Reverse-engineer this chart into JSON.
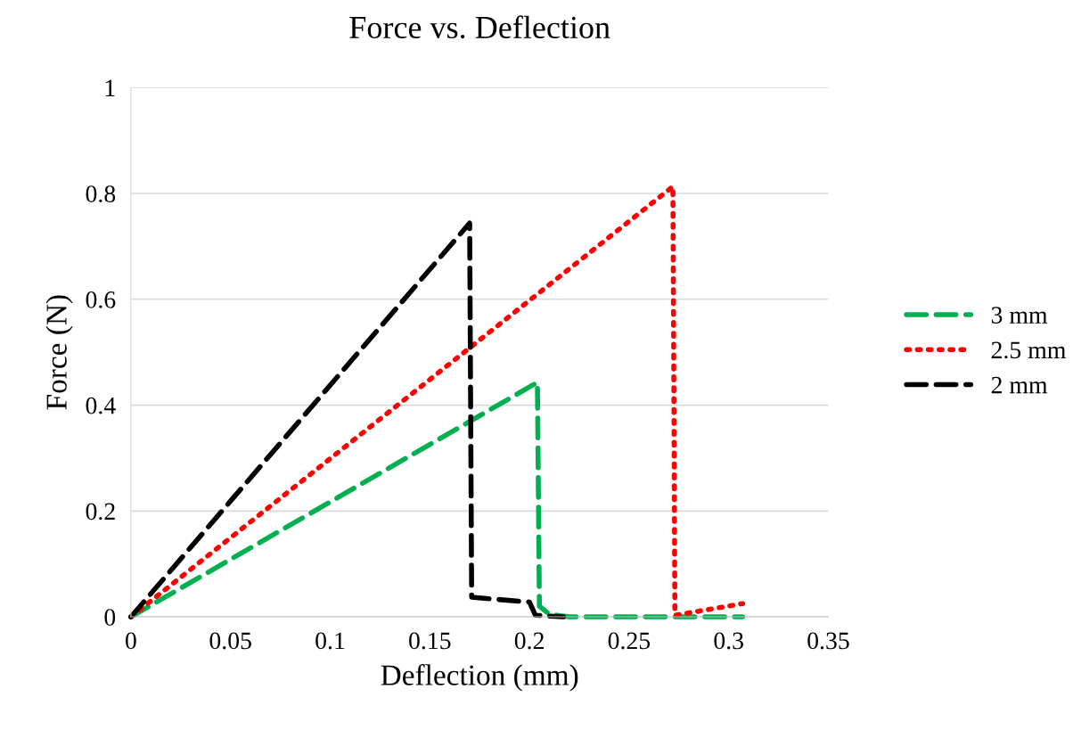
{
  "chart_data": {
    "type": "line",
    "title": "Force vs. Deflection",
    "xlabel": "Deflection (mm)",
    "ylabel": "Force (N)",
    "xlim": [
      0,
      0.35
    ],
    "xticks": [
      {
        "value": 0,
        "label": "0"
      },
      0.05,
      0.1,
      0.15,
      0.2,
      0.25,
      0.3,
      0.35
    ],
    "ylim": [
      0,
      1
    ],
    "yticks": [
      {
        "value": 0,
        "label": "0"
      },
      0.2,
      0.4,
      0.6,
      0.8,
      {
        "value": 1,
        "label": "1"
      }
    ],
    "grid": "y",
    "legend": "right",
    "marker": "none",
    "series": [
      {
        "name": "3 mm",
        "color": "#00b050",
        "line_style": "dashed",
        "x": [
          0,
          0.204,
          0.205,
          0.21,
          0.22,
          0.307
        ],
        "values": [
          0,
          0.443,
          0.02,
          0.005,
          0,
          0
        ]
      },
      {
        "name": "2.5 mm",
        "color": "#ff0000",
        "line_style": "dotted",
        "x": [
          0,
          0.272,
          0.273,
          0.307
        ],
        "values": [
          0,
          0.813,
          0.003,
          0.025
        ]
      },
      {
        "name": "2 mm",
        "color": "#000000",
        "line_style": "dashed",
        "x": [
          0,
          0.17,
          0.171,
          0.2,
          0.203,
          0.217
        ],
        "values": [
          0,
          0.744,
          0.037,
          0.028,
          0.003,
          0
        ]
      }
    ]
  }
}
